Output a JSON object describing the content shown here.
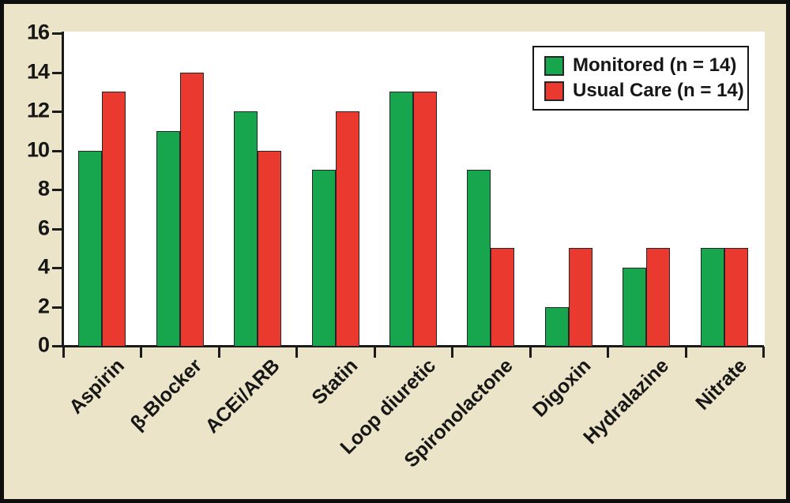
{
  "chart_data": {
    "type": "bar",
    "title": "",
    "xlabel": "",
    "ylabel": "",
    "categories": [
      "Aspirin",
      "β-Blocker",
      "ACEi/ARB",
      "Statin",
      "Loop diuretic",
      "Spironolactone",
      "Digoxin",
      "Hydralazine",
      "Nitrate"
    ],
    "series": [
      {
        "name": "Monitored (n = 14)",
        "color": "#17a54d",
        "values": [
          10,
          11,
          12,
          9,
          13,
          9,
          2,
          4,
          5
        ]
      },
      {
        "name": "Usual Care (n = 14)",
        "color": "#ea392f",
        "values": [
          13,
          14,
          10,
          12,
          13,
          5,
          5,
          5,
          5
        ]
      }
    ],
    "ylim": [
      0,
      16
    ],
    "yticks": [
      0,
      2,
      4,
      6,
      8,
      10,
      12,
      14,
      16
    ],
    "grid": false,
    "legend_position": "top-right",
    "colors": {
      "background": "#ece4c8",
      "plot_background": "#ffffff",
      "axis": "#1a1a1a",
      "bar_outline": "#262626",
      "frame_border": "#0e0e0e"
    }
  }
}
